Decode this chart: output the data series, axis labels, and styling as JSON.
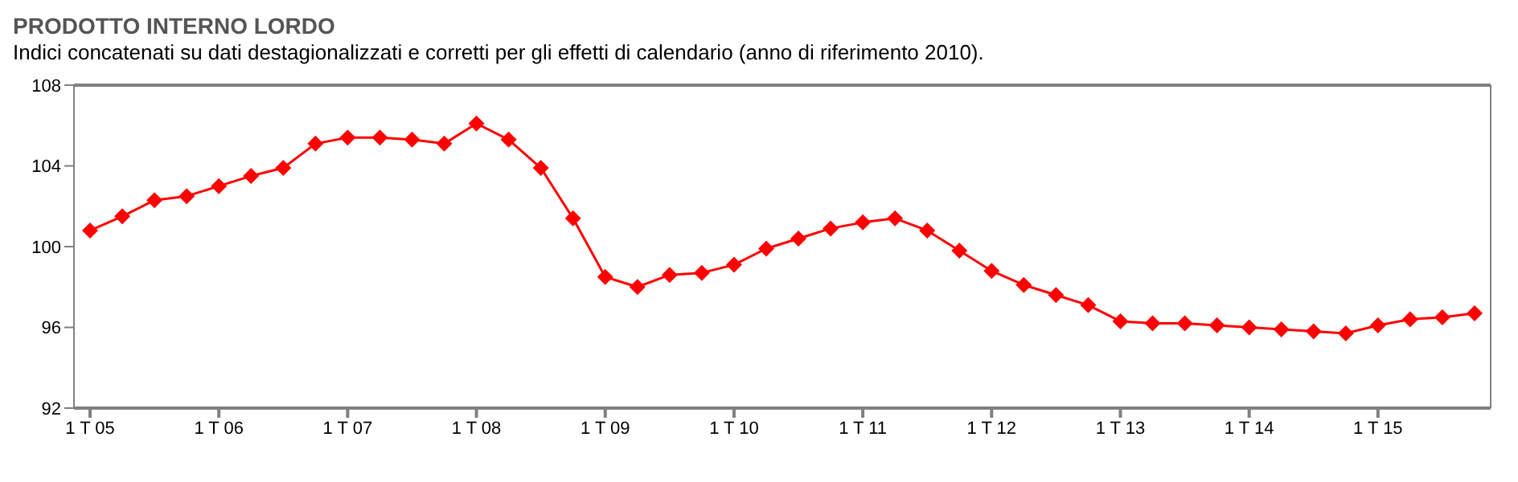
{
  "chart_data": {
    "type": "line",
    "title": "PRODOTTO INTERNO LORDO",
    "subtitle": "Indici concatenati su dati destagionalizzati e corretti per gli effetti di calendario (anno di riferimento 2010).",
    "categories": [
      "1 T 05",
      null,
      null,
      null,
      "1 T 06",
      null,
      null,
      null,
      "1 T 07",
      null,
      null,
      null,
      "1 T 08",
      null,
      null,
      null,
      "1 T 09",
      null,
      null,
      null,
      "1 T 10",
      null,
      null,
      null,
      "1 T 11",
      null,
      null,
      null,
      "1 T 12",
      null,
      null,
      null,
      "1 T 13",
      null,
      null,
      null,
      "1 T 14",
      null,
      null,
      null,
      "1 T 15",
      null,
      null,
      null
    ],
    "series": [
      {
        "color": "#ff0000",
        "values": [
          100.8,
          101.5,
          102.3,
          102.5,
          103.0,
          103.5,
          103.9,
          105.1,
          105.4,
          105.4,
          105.3,
          105.1,
          106.1,
          105.3,
          103.9,
          101.4,
          98.5,
          98.0,
          98.6,
          98.7,
          99.1,
          99.9,
          100.4,
          100.9,
          101.2,
          101.4,
          100.8,
          99.8,
          98.8,
          98.1,
          97.6,
          97.1,
          96.3,
          96.2,
          96.2,
          96.1,
          96.0,
          95.9,
          95.8,
          95.7,
          96.1,
          96.4,
          96.5,
          96.7
        ]
      }
    ],
    "ylim": [
      92,
      108
    ],
    "yticks": [
      92,
      96,
      100,
      104,
      108
    ],
    "legend": false,
    "marker": "diamond",
    "line_style": "solid"
  }
}
